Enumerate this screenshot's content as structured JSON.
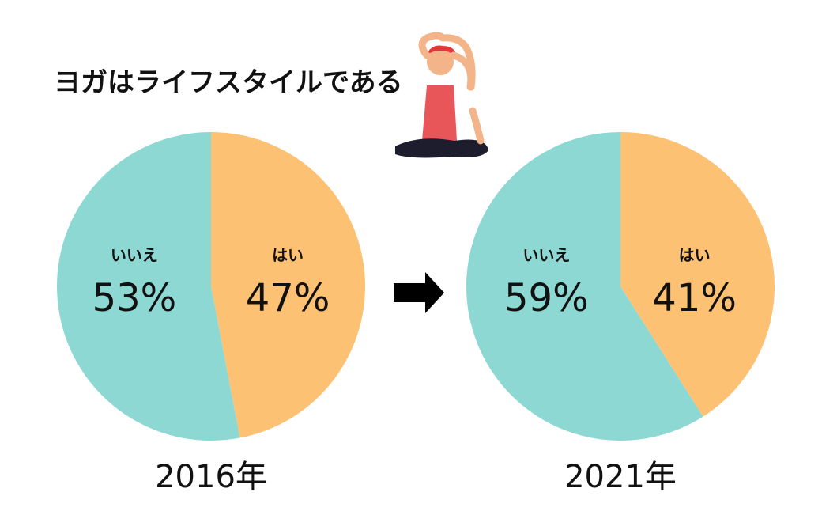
{
  "title": "ヨガはライフスタイルである",
  "chart_data": [
    {
      "type": "pie",
      "title": "2016年",
      "categories": [
        "はい",
        "いいえ"
      ],
      "values": [
        47,
        53
      ],
      "value_labels": [
        "47%",
        "53%"
      ],
      "colors": [
        "#fcc173",
        "#8dd8d2"
      ]
    },
    {
      "type": "pie",
      "title": "2021年",
      "categories": [
        "はい",
        "いいえ"
      ],
      "values": [
        41,
        59
      ],
      "value_labels": [
        "41%",
        "59%"
      ],
      "colors": [
        "#fcc173",
        "#8dd8d2"
      ]
    }
  ]
}
